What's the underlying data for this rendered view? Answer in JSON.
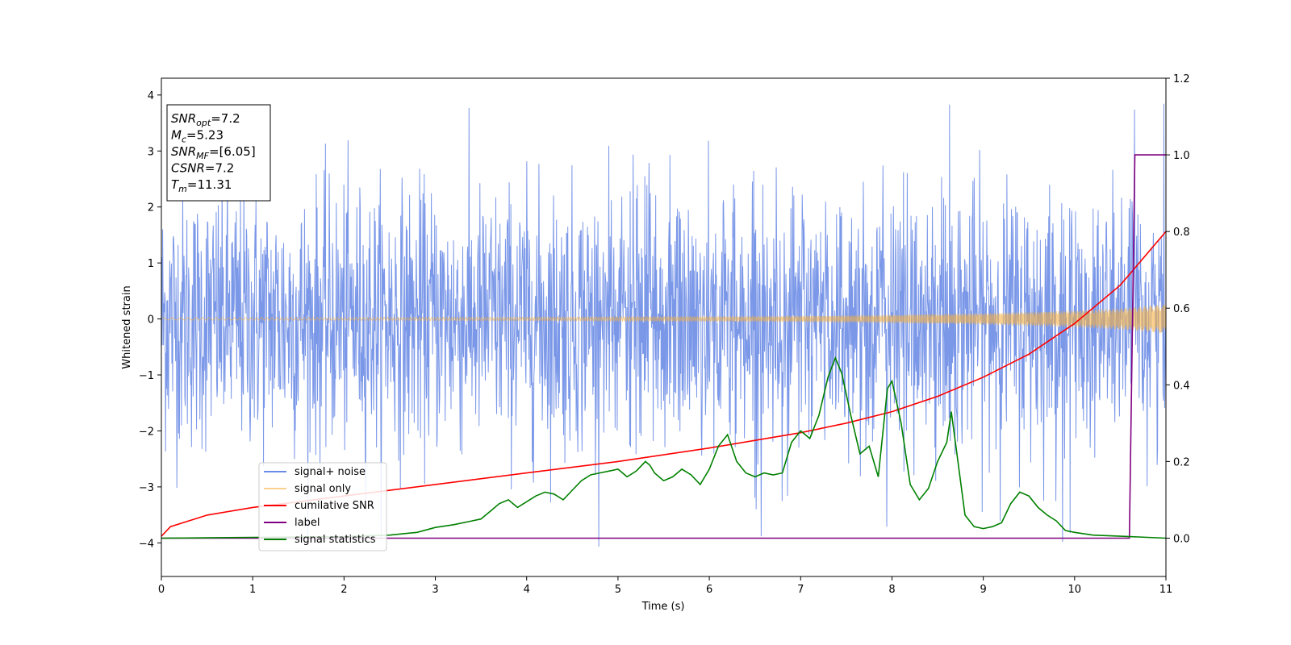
{
  "chart_data": {
    "type": "line",
    "xlabel": "Time (s)",
    "ylabel": "Whitened strain",
    "xlim": [
      0,
      11
    ],
    "ylim": [
      -4.6,
      4.3
    ],
    "y2lim": [
      -0.1,
      1.2
    ],
    "x_ticks": [
      "0",
      "1",
      "2",
      "3",
      "4",
      "5",
      "6",
      "7",
      "8",
      "9",
      "10",
      "11"
    ],
    "y_ticks": [
      "−4",
      "−3",
      "−2",
      "−1",
      "0",
      "1",
      "2",
      "3",
      "4"
    ],
    "y2_ticks": [
      "0.0",
      "0.2",
      "0.4",
      "0.6",
      "0.8",
      "1.0",
      "1.2"
    ],
    "grid": false,
    "legend_position": "lower-left",
    "annotation": [
      {
        "name": "SNR",
        "sub": "opt",
        "value": "=7.2"
      },
      {
        "name": "M",
        "sub": "c",
        "value": "=5.23"
      },
      {
        "name": "SNR",
        "sub": "MF",
        "value": "=[6.05]"
      },
      {
        "name": "CSNR",
        "sub": "",
        "value": "=7.2"
      },
      {
        "name": "T",
        "sub": "m",
        "value": "=11.31"
      }
    ],
    "series": [
      {
        "name": "signal+ noise",
        "axis": "left",
        "color": "#6b8ce6",
        "style": "gaussian noise, std ~1.1, peaks to about ±3.9",
        "peak_max": 3.9,
        "peak_min": -4.15
      },
      {
        "name": "signal only",
        "axis": "left",
        "color": "#f5b041",
        "envelope": {
          "x": [
            0,
            2,
            4,
            6,
            7,
            8,
            9,
            10,
            10.5,
            11
          ],
          "amp": [
            0.02,
            0.025,
            0.03,
            0.04,
            0.05,
            0.07,
            0.1,
            0.15,
            0.19,
            0.26
          ]
        }
      },
      {
        "name": "cumilative SNR",
        "axis": "right",
        "color": "#ff0000",
        "x": [
          0,
          0.1,
          0.5,
          1,
          2,
          3,
          4,
          5,
          6,
          7,
          7.5,
          8,
          8.5,
          9,
          9.5,
          10,
          10.5,
          11
        ],
        "y": [
          0.005,
          0.03,
          0.06,
          0.08,
          0.11,
          0.14,
          0.17,
          0.2,
          0.235,
          0.275,
          0.3,
          0.33,
          0.37,
          0.42,
          0.48,
          0.56,
          0.66,
          0.8
        ]
      },
      {
        "name": "label",
        "axis": "right",
        "color": "#800080",
        "x": [
          0,
          10.6,
          10.66,
          11
        ],
        "y": [
          0,
          0,
          1,
          1
        ]
      },
      {
        "name": "signal statistics",
        "axis": "right",
        "color": "#008000",
        "x": [
          0,
          1,
          2,
          2.5,
          2.8,
          3,
          3.2,
          3.4,
          3.5,
          3.6,
          3.7,
          3.8,
          3.9,
          4.0,
          4.1,
          4.2,
          4.3,
          4.4,
          4.5,
          4.6,
          4.7,
          4.8,
          4.9,
          5.0,
          5.1,
          5.2,
          5.3,
          5.35,
          5.4,
          5.5,
          5.6,
          5.7,
          5.8,
          5.9,
          6.0,
          6.1,
          6.2,
          6.3,
          6.4,
          6.5,
          6.6,
          6.7,
          6.8,
          6.9,
          7.0,
          7.1,
          7.2,
          7.3,
          7.38,
          7.45,
          7.55,
          7.65,
          7.75,
          7.85,
          7.95,
          8.0,
          8.1,
          8.2,
          8.3,
          8.4,
          8.5,
          8.6,
          8.65,
          8.7,
          8.8,
          8.9,
          9.0,
          9.1,
          9.2,
          9.3,
          9.4,
          9.5,
          9.6,
          9.7,
          9.8,
          9.9,
          10.0,
          10.2,
          10.5,
          10.7,
          11
        ],
        "y": [
          0.0,
          0.002,
          0.004,
          0.008,
          0.015,
          0.028,
          0.035,
          0.045,
          0.05,
          0.07,
          0.09,
          0.1,
          0.08,
          0.095,
          0.11,
          0.12,
          0.115,
          0.1,
          0.125,
          0.15,
          0.165,
          0.17,
          0.175,
          0.18,
          0.16,
          0.175,
          0.2,
          0.19,
          0.17,
          0.15,
          0.16,
          0.18,
          0.165,
          0.14,
          0.18,
          0.24,
          0.27,
          0.2,
          0.17,
          0.16,
          0.17,
          0.165,
          0.17,
          0.25,
          0.28,
          0.26,
          0.32,
          0.42,
          0.47,
          0.43,
          0.32,
          0.22,
          0.24,
          0.16,
          0.39,
          0.41,
          0.3,
          0.14,
          0.1,
          0.13,
          0.2,
          0.25,
          0.33,
          0.24,
          0.06,
          0.03,
          0.025,
          0.03,
          0.04,
          0.09,
          0.12,
          0.11,
          0.08,
          0.06,
          0.045,
          0.02,
          0.015,
          0.008,
          0.005,
          0.003,
          0.0
        ]
      }
    ]
  }
}
